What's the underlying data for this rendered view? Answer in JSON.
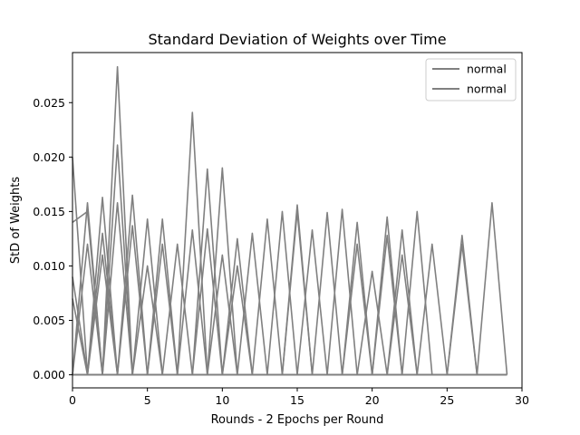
{
  "chart_data": {
    "type": "line",
    "title": "Standard Deviation of Weights over Time",
    "xlabel": "Rounds - 2 Epochs per Round",
    "ylabel": "StD of Weights",
    "xlim": [
      0,
      30
    ],
    "ylim": [
      -0.0012,
      0.0296
    ],
    "xticks": [
      0,
      5,
      10,
      15,
      20,
      25,
      30
    ],
    "xtick_labels": [
      "0",
      "5",
      "10",
      "15",
      "20",
      "25",
      "30"
    ],
    "yticks": [
      0.0,
      0.005,
      0.01,
      0.015,
      0.02,
      0.025
    ],
    "ytick_labels": [
      "0.000",
      "0.005",
      "0.010",
      "0.015",
      "0.020",
      "0.025"
    ],
    "grid": false,
    "legend": {
      "location": "upper right",
      "entries": [
        "normal",
        "normal"
      ]
    },
    "line_color": "#808080",
    "x": [
      0,
      1,
      2,
      3,
      4,
      5,
      6,
      7,
      8,
      9,
      10,
      11,
      12,
      13,
      14,
      15,
      16,
      17,
      18,
      19,
      20,
      21,
      22,
      23,
      24,
      25,
      26,
      27,
      28,
      29
    ],
    "series": [
      {
        "name": "normal",
        "values": [
          0.02,
          0.0,
          0.0163,
          0.0,
          0.0,
          0.0,
          0.0,
          0.0,
          0.0,
          0.0,
          0.0,
          0.0,
          0.0,
          0.0,
          0.0,
          0.0,
          0.0,
          0.0,
          0.0,
          0.0,
          0.0,
          0.0,
          0.0,
          0.0,
          0.0,
          0.0,
          0.0,
          0.0,
          0.0,
          0.0
        ]
      },
      {
        "name": "normal",
        "values": [
          0.0,
          0.0158,
          0.0,
          0.0283,
          0.0,
          0.01,
          0.0,
          0.0,
          0.0241,
          0.0,
          0.0,
          0.0,
          0.0,
          0.0,
          0.0,
          0.0,
          0.0,
          0.0,
          0.0,
          0.0,
          0.0,
          0.0,
          0.0,
          0.0,
          0.0,
          0.0,
          0.0,
          0.0,
          0.0,
          0.0
        ]
      },
      {
        "values": [
          0.014,
          0.015,
          0.0,
          0.0211,
          0.0,
          0.0,
          0.0,
          0.0,
          0.0,
          0.0189,
          0.0,
          0.0125,
          0.0,
          0.0,
          0.0,
          0.0,
          0.0,
          0.0,
          0.0,
          0.0,
          0.0,
          0.0,
          0.0,
          0.0,
          0.0,
          0.0,
          0.0,
          0.0,
          0.0,
          0.0
        ]
      },
      {
        "values": [
          0.0,
          0.012,
          0.0,
          0.0,
          0.0165,
          0.0,
          0.0,
          0.0,
          0.0,
          0.0,
          0.019,
          0.0,
          0.0,
          0.0,
          0.0,
          0.0,
          0.0,
          0.0,
          0.0,
          0.0,
          0.0,
          0.0,
          0.0,
          0.0,
          0.0,
          0.0,
          0.0,
          0.0,
          0.0,
          0.0
        ]
      },
      {
        "values": [
          0.009,
          0.0,
          0.013,
          0.0,
          0.0,
          0.0143,
          0.0,
          0.0,
          0.0133,
          0.0,
          0.0,
          0.0,
          0.0,
          0.0,
          0.0,
          0.0,
          0.0,
          0.0,
          0.0,
          0.0,
          0.0,
          0.0,
          0.0,
          0.0,
          0.0,
          0.0,
          0.0,
          0.0,
          0.0,
          0.0
        ]
      },
      {
        "values": [
          0.0,
          0.0,
          0.0,
          0.0158,
          0.0,
          0.0,
          0.0143,
          0.0,
          0.0,
          0.0134,
          0.0,
          0.0,
          0.0,
          0.0,
          0.0,
          0.0,
          0.0,
          0.0,
          0.0,
          0.0,
          0.0,
          0.0,
          0.0,
          0.0,
          0.0,
          0.0,
          0.0,
          0.0,
          0.0,
          0.0
        ]
      },
      {
        "values": [
          0.007,
          0.0,
          0.0,
          0.0,
          0.0137,
          0.0,
          0.0,
          0.012,
          0.0,
          0.0,
          0.011,
          0.0,
          0.0,
          0.0,
          0.0,
          0.0,
          0.0,
          0.0,
          0.0,
          0.0,
          0.0,
          0.0,
          0.0,
          0.0,
          0.0,
          0.0,
          0.0,
          0.0,
          0.0,
          0.0
        ]
      },
      {
        "values": [
          0.0,
          0.0,
          0.011,
          0.0,
          0.0,
          0.0,
          0.012,
          0.0,
          0.0,
          0.0,
          0.0,
          0.01,
          0.0,
          0.0,
          0.0,
          0.0,
          0.0,
          0.0,
          0.0,
          0.0,
          0.0,
          0.0,
          0.0,
          0.0,
          0.0,
          0.0,
          0.0,
          0.0,
          0.0,
          0.0
        ]
      },
      {
        "values": [
          0.0,
          0.0,
          0.0,
          0.0,
          0.0,
          0.0,
          0.0,
          0.0,
          0.0,
          0.0,
          0.0,
          0.0,
          0.0,
          0.0,
          0.0,
          0.0156,
          0.0,
          0.0149,
          0.0,
          0.0,
          0.0,
          0.0145,
          0.0,
          0.015,
          0.0,
          0.0,
          0.0,
          0.0,
          0.0158,
          0.0
        ]
      },
      {
        "values": [
          0.0,
          0.0,
          0.0,
          0.0,
          0.0,
          0.0,
          0.0,
          0.0,
          0.0,
          0.0,
          0.0,
          0.0,
          0.0,
          0.0143,
          0.0,
          0.0,
          0.0133,
          0.0,
          0.0,
          0.012,
          0.0,
          0.0,
          0.0133,
          0.0,
          0.0,
          0.0,
          0.0128,
          0.0,
          0.0,
          0.0
        ]
      },
      {
        "values": [
          0.0,
          0.0,
          0.0,
          0.0,
          0.0,
          0.0,
          0.0,
          0.0,
          0.0,
          0.0,
          0.0,
          0.0,
          0.013,
          0.0,
          0.015,
          0.0,
          0.0,
          0.0,
          0.0152,
          0.0,
          0.0,
          0.0128,
          0.0,
          0.0,
          0.012,
          0.0,
          0.0,
          0.0,
          0.0,
          0.0
        ]
      },
      {
        "values": [
          0.0,
          0.0,
          0.0,
          0.0,
          0.0,
          0.0,
          0.0,
          0.0,
          0.0,
          0.0,
          0.0,
          0.0,
          0.0,
          0.0,
          0.0,
          0.0,
          0.0,
          0.0,
          0.0,
          0.0,
          0.0095,
          0.0,
          0.0,
          0.0,
          0.0,
          0.0,
          0.012,
          0.0,
          0.0,
          0.0
        ]
      },
      {
        "values": [
          0.0,
          0.0,
          0.0,
          0.0,
          0.0,
          0.0,
          0.0,
          0.0,
          0.0,
          0.0,
          0.0,
          0.0,
          0.0,
          0.0,
          0.0,
          0.015,
          0.0,
          0.0,
          0.0,
          0.0,
          0.0,
          0.0,
          0.011,
          0.0,
          0.0,
          0.0,
          0.0,
          0.0,
          0.0,
          0.0
        ]
      },
      {
        "values": [
          0.0,
          0.0,
          0.0,
          0.0,
          0.0,
          0.0,
          0.0,
          0.0,
          0.0,
          0.0,
          0.0,
          0.0,
          0.0,
          0.0,
          0.0,
          0.0,
          0.0,
          0.0,
          0.0,
          0.014,
          0.0,
          0.0,
          0.0,
          0.0,
          0.0,
          0.0,
          0.0,
          0.0,
          0.0,
          0.0
        ]
      },
      {
        "values": [
          0.0,
          0.0,
          0.0,
          0.0,
          0.0,
          0.0,
          0.0,
          0.0,
          0.0,
          0.0,
          0.0,
          0.0,
          0.0,
          0.0,
          0.0,
          0.0,
          0.0,
          0.0,
          0.0,
          0.0,
          0.0,
          0.0,
          0.0,
          0.0,
          0.0,
          0.0,
          0.0,
          0.0,
          0.0,
          0.0
        ]
      }
    ]
  }
}
